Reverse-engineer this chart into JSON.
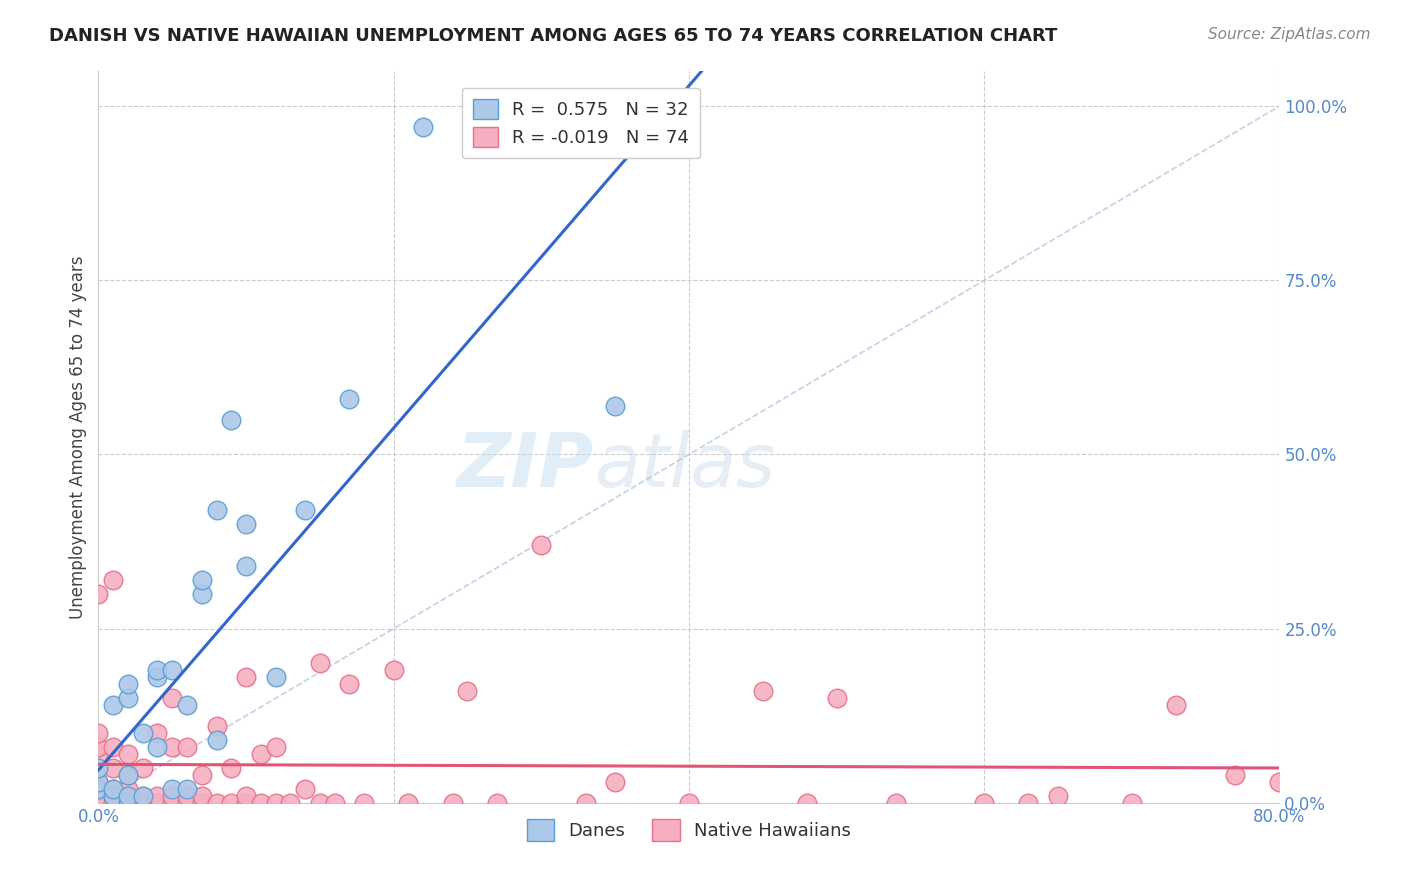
{
  "title": "DANISH VS NATIVE HAWAIIAN UNEMPLOYMENT AMONG AGES 65 TO 74 YEARS CORRELATION CHART",
  "source": "Source: ZipAtlas.com",
  "ylabel": "Unemployment Among Ages 65 to 74 years",
  "xlim": [
    0.0,
    0.8
  ],
  "ylim": [
    0.0,
    1.05
  ],
  "xticks": [
    0.0,
    0.2,
    0.4,
    0.6,
    0.8
  ],
  "xtick_labels": [
    "0.0%",
    "",
    "",
    "",
    "80.0%"
  ],
  "yticks": [
    0.0,
    0.25,
    0.5,
    0.75,
    1.0
  ],
  "ytick_labels": [
    "0.0%",
    "25.0%",
    "50.0%",
    "75.0%",
    "100.0%"
  ],
  "danes_color": "#adc8e8",
  "natives_color": "#f5afc0",
  "danes_edge_color": "#5a9fd4",
  "natives_edge_color": "#e8708a",
  "trendline_danes_color": "#3366cc",
  "trendline_natives_color": "#e05575",
  "diagonal_color": "#b0c8e0",
  "background_color": "#ffffff",
  "grid_color": "#cccccc",
  "legend_r_danes": "R =  0.575",
  "legend_n_danes": "N = 32",
  "legend_r_natives": "R = -0.019",
  "legend_n_natives": "N = 74",
  "watermark_zip": "ZIP",
  "watermark_atlas": "atlas",
  "danes_x": [
    0.0,
    0.0,
    0.0,
    0.01,
    0.01,
    0.01,
    0.02,
    0.02,
    0.02,
    0.02,
    0.02,
    0.03,
    0.03,
    0.04,
    0.04,
    0.04,
    0.05,
    0.05,
    0.06,
    0.06,
    0.07,
    0.07,
    0.08,
    0.08,
    0.09,
    0.1,
    0.1,
    0.12,
    0.14,
    0.17,
    0.22,
    0.35
  ],
  "danes_y": [
    0.02,
    0.03,
    0.05,
    0.01,
    0.02,
    0.14,
    0.0,
    0.01,
    0.04,
    0.15,
    0.17,
    0.01,
    0.1,
    0.08,
    0.18,
    0.19,
    0.02,
    0.19,
    0.02,
    0.14,
    0.3,
    0.32,
    0.09,
    0.42,
    0.55,
    0.34,
    0.4,
    0.18,
    0.42,
    0.58,
    0.97,
    0.57
  ],
  "natives_x": [
    0.0,
    0.0,
    0.0,
    0.0,
    0.0,
    0.0,
    0.0,
    0.0,
    0.0,
    0.01,
    0.01,
    0.01,
    0.01,
    0.01,
    0.01,
    0.02,
    0.02,
    0.02,
    0.02,
    0.02,
    0.03,
    0.03,
    0.03,
    0.04,
    0.04,
    0.04,
    0.05,
    0.05,
    0.05,
    0.05,
    0.06,
    0.06,
    0.06,
    0.07,
    0.07,
    0.07,
    0.08,
    0.08,
    0.09,
    0.09,
    0.1,
    0.1,
    0.1,
    0.11,
    0.11,
    0.12,
    0.12,
    0.13,
    0.14,
    0.15,
    0.15,
    0.16,
    0.17,
    0.18,
    0.2,
    0.21,
    0.24,
    0.25,
    0.27,
    0.3,
    0.33,
    0.35,
    0.4,
    0.45,
    0.48,
    0.5,
    0.54,
    0.6,
    0.63,
    0.65,
    0.7,
    0.73,
    0.77,
    0.8
  ],
  "natives_y": [
    0.0,
    0.01,
    0.02,
    0.03,
    0.05,
    0.07,
    0.08,
    0.1,
    0.3,
    0.0,
    0.01,
    0.02,
    0.05,
    0.08,
    0.32,
    0.0,
    0.01,
    0.02,
    0.04,
    0.07,
    0.0,
    0.01,
    0.05,
    0.0,
    0.01,
    0.1,
    0.0,
    0.01,
    0.08,
    0.15,
    0.0,
    0.01,
    0.08,
    0.0,
    0.01,
    0.04,
    0.0,
    0.11,
    0.0,
    0.05,
    0.0,
    0.01,
    0.18,
    0.0,
    0.07,
    0.0,
    0.08,
    0.0,
    0.02,
    0.0,
    0.2,
    0.0,
    0.17,
    0.0,
    0.19,
    0.0,
    0.0,
    0.16,
    0.0,
    0.37,
    0.0,
    0.03,
    0.0,
    0.16,
    0.0,
    0.15,
    0.0,
    0.0,
    0.0,
    0.01,
    0.0,
    0.14,
    0.04,
    0.03
  ],
  "title_fontsize": 13,
  "source_fontsize": 11,
  "tick_fontsize": 12,
  "ylabel_fontsize": 12
}
